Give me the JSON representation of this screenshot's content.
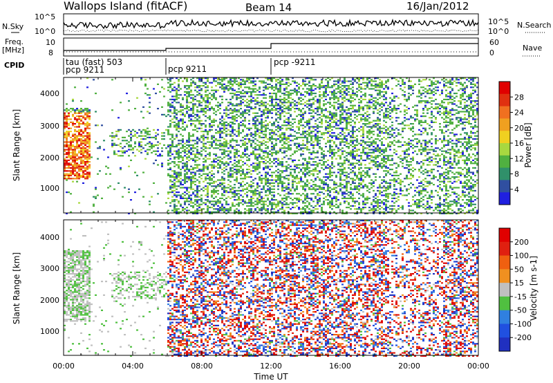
{
  "header": {
    "station": "Wallops Island (fitACF)",
    "beam": "Beam 14",
    "date": "16/Jan/2012"
  },
  "noise_panel": {
    "left_label": "N.Sky",
    "right_label": "N.Search",
    "left_ticks": [
      "10^5",
      "10^0"
    ],
    "right_ticks": [
      "10^5",
      "10^0"
    ]
  },
  "freq_panel": {
    "left_label_1": "Freq.",
    "left_label_2": "[MHz]",
    "right_label": "Nave",
    "left_ticks": [
      "10",
      "8"
    ],
    "right_ticks": [
      "60",
      "0"
    ]
  },
  "cpid_panel": {
    "label": "CPID",
    "entries": [
      "tau (fast) 503",
      "pcp 9211",
      "pcp 9211",
      "pcp -9211"
    ]
  },
  "power_panel": {
    "ylabel": "Slant Range [km]",
    "yticks": [
      "4000",
      "3000",
      "2000",
      "1000"
    ],
    "colorbar_label": "Power [dB]",
    "colorbar_ticks": [
      "28",
      "24",
      "20",
      "16",
      "12",
      "8",
      "4"
    ],
    "colors": [
      "#2020e0",
      "#304fa0",
      "#30906a",
      "#50b040",
      "#a8d840",
      "#f0d020",
      "#f0a020",
      "#f07020",
      "#e03010",
      "#e00000"
    ]
  },
  "velocity_panel": {
    "ylabel": "Slant Range [km]",
    "yticks": [
      "4000",
      "3000",
      "2000",
      "1000"
    ],
    "colorbar_label": "Velocity [m s-1]",
    "colorbar_ticks": [
      "200",
      "100",
      "50",
      "15",
      "-15",
      "-50",
      "-100",
      "-200"
    ],
    "colors": [
      "#2030c0",
      "#2050e0",
      "#3080e0",
      "#50c040",
      "#c0c0c0",
      "#f09020",
      "#f06010",
      "#e02010",
      "#e00000"
    ]
  },
  "xaxis": {
    "label": "Time UT",
    "ticks": [
      "00:00",
      "04:00",
      "08:00",
      "12:00",
      "16:00",
      "20:00",
      "00:00"
    ]
  },
  "chart_data": [
    {
      "type": "heatmap",
      "title": "Power",
      "xlabel": "Time UT",
      "ylabel": "Slant Range [km]",
      "xlim": [
        "00:00",
        "24:00"
      ],
      "ylim": [
        180,
        4500
      ],
      "colorbar": "Power [dB]",
      "colorbar_range": [
        0,
        30
      ]
    },
    {
      "type": "heatmap",
      "title": "Velocity",
      "xlabel": "Time UT",
      "ylabel": "Slant Range [km]",
      "xlim": [
        "00:00",
        "24:00"
      ],
      "ylim": [
        180,
        4500
      ],
      "colorbar": "Velocity [m s-1]",
      "colorbar_range": [
        -250,
        250
      ]
    },
    {
      "type": "line",
      "title": "Freq. / Nave",
      "series": [
        {
          "name": "Freq.",
          "x": [
            "00:00",
            "06:00",
            "12:00",
            "24:00"
          ],
          "values": [
            8.5,
            9.2,
            10.6,
            10.6
          ]
        }
      ]
    }
  ]
}
